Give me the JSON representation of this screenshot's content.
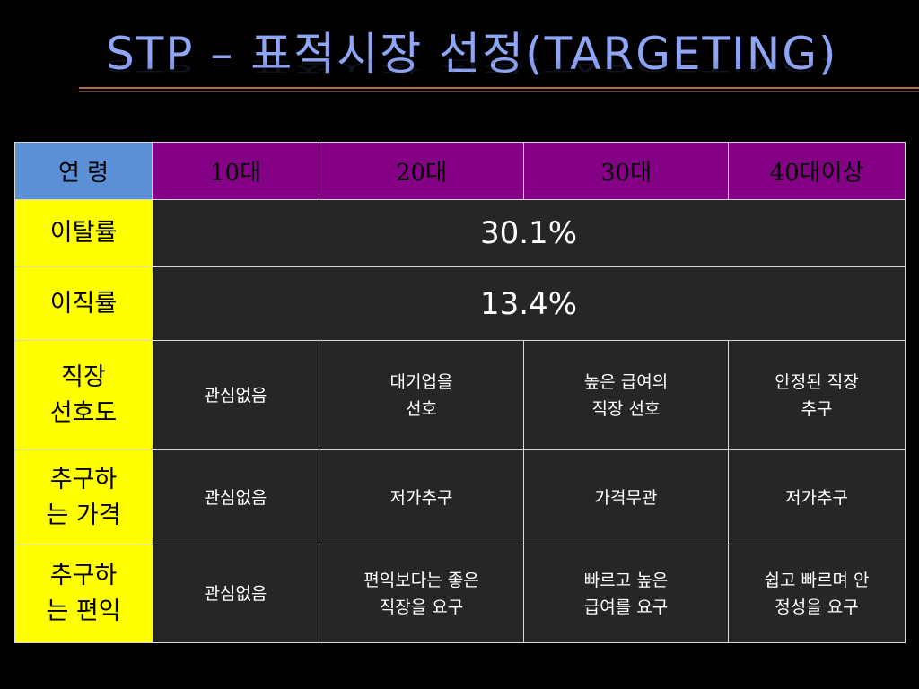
{
  "title": "STP – 표적시장 선정(TARGETING)",
  "header": {
    "age_label": "연 령",
    "columns": [
      "10대",
      "20대",
      "30대",
      "40대이상"
    ]
  },
  "rows": {
    "churn": {
      "label": "이탈률",
      "value": "30.1%"
    },
    "turnover": {
      "label": "이직률",
      "value": "13.4%"
    },
    "job_pref": {
      "label_line1": "직장",
      "label_line2": "선호도",
      "cells": [
        [
          "관심없음"
        ],
        [
          "대기업을",
          "선호"
        ],
        [
          "높은 급여의",
          "직장 선호"
        ],
        [
          "안정된 직장",
          "추구"
        ]
      ]
    },
    "price": {
      "label_line1": "추구하",
      "label_line2": "는 가격",
      "cells": [
        "관심없음",
        "저가추구",
        "가격무관",
        "저가추구"
      ]
    },
    "convenience": {
      "label_line1": "추구하",
      "label_line2": "는 편익",
      "cells": [
        [
          "관심없음"
        ],
        [
          "편익보다는 좋은",
          "직장을 요구"
        ],
        [
          "빠르고 높은",
          "급여를 요구"
        ],
        [
          "쉽고 빠르며 안",
          "정성을 요구"
        ]
      ]
    }
  }
}
